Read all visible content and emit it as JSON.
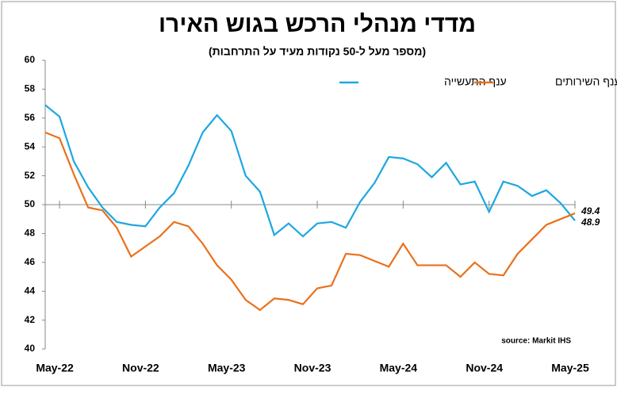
{
  "chart_data": {
    "type": "line",
    "title": "מדדי מנהלי הרכש בגוש האירו",
    "subtitle": "(מספר מעל ל-50 נקודות מעיד על התרחבות)",
    "source": "source: Markit IHS",
    "categories": [
      null,
      "May-22",
      null,
      null,
      null,
      null,
      null,
      "Nov-22",
      null,
      null,
      null,
      null,
      null,
      "May-23",
      null,
      null,
      null,
      null,
      null,
      "Nov-23",
      null,
      null,
      null,
      null,
      null,
      "May-24",
      null,
      null,
      null,
      null,
      null,
      "Nov-24",
      null,
      null,
      null,
      null,
      null,
      "May-25"
    ],
    "series": [
      {
        "name": "ענף השירותים",
        "color": "#1ea7e1",
        "values": [
          56.9,
          56.1,
          53.0,
          51.2,
          49.8,
          48.8,
          48.6,
          48.5,
          49.8,
          50.8,
          52.7,
          55.0,
          56.2,
          55.1,
          52.0,
          50.9,
          47.9,
          48.7,
          47.8,
          48.7,
          48.8,
          48.4,
          50.2,
          51.5,
          53.3,
          53.2,
          52.8,
          51.9,
          52.9,
          51.4,
          51.6,
          49.5,
          51.6,
          51.3,
          50.6,
          51.0,
          50.1,
          48.9
        ]
      },
      {
        "name": "ענף התעשייה",
        "color": "#e9711c",
        "values": [
          55.0,
          54.6,
          52.1,
          49.8,
          49.6,
          48.4,
          46.4,
          47.1,
          47.8,
          48.8,
          48.5,
          47.3,
          45.8,
          44.8,
          43.4,
          42.7,
          43.5,
          43.4,
          43.1,
          44.2,
          44.4,
          46.6,
          46.5,
          46.1,
          45.7,
          47.3,
          45.8,
          45.8,
          45.8,
          45.0,
          46.0,
          45.2,
          45.1,
          46.6,
          47.6,
          48.6,
          49.0,
          49.4
        ]
      }
    ],
    "ylim": [
      40,
      60
    ],
    "yticks": [
      40,
      42,
      44,
      46,
      48,
      50,
      52,
      54,
      56,
      58,
      60
    ],
    "reference_line": 50,
    "grid": false
  }
}
